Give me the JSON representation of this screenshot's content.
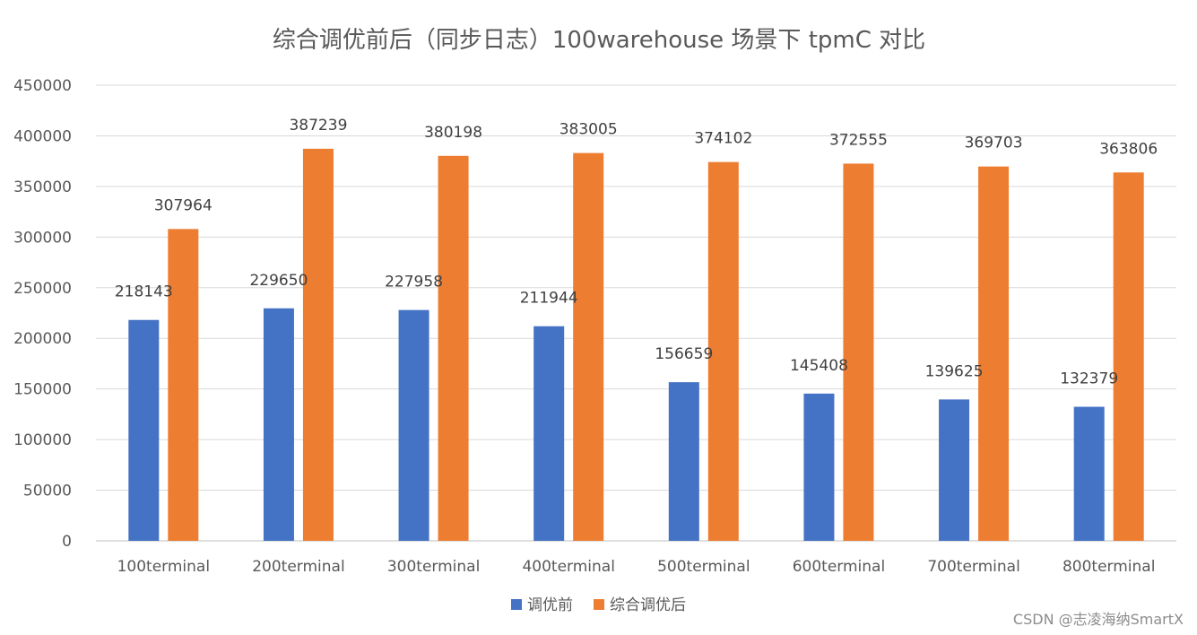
{
  "chart_data": {
    "type": "bar",
    "title": "综合调优前后（同步日志）100warehouse 场景下 tpmC 对比",
    "xlabel": "",
    "ylabel": "",
    "ylim": [
      0,
      450000
    ],
    "yticks": [
      0,
      50000,
      100000,
      150000,
      200000,
      250000,
      300000,
      350000,
      400000,
      450000
    ],
    "grid": true,
    "legend_position": "bottom",
    "categories": [
      "100terminal",
      "200terminal",
      "300terminal",
      "400terminal",
      "500terminal",
      "600terminal",
      "700terminal",
      "800terminal"
    ],
    "series": [
      {
        "name": "调优前",
        "color": "#4472C4",
        "values": [
          218143,
          229650,
          227958,
          211944,
          156659,
          145408,
          139625,
          132379
        ]
      },
      {
        "name": "综合调优后",
        "color": "#ED7D31",
        "values": [
          307964,
          387239,
          380198,
          383005,
          374102,
          372555,
          369703,
          363806
        ]
      }
    ]
  },
  "watermark": "CSDN @志凌海纳SmartX",
  "colors": {
    "grid": "#d9d9d9",
    "axis": "#bfbfbf",
    "text": "#595959"
  }
}
